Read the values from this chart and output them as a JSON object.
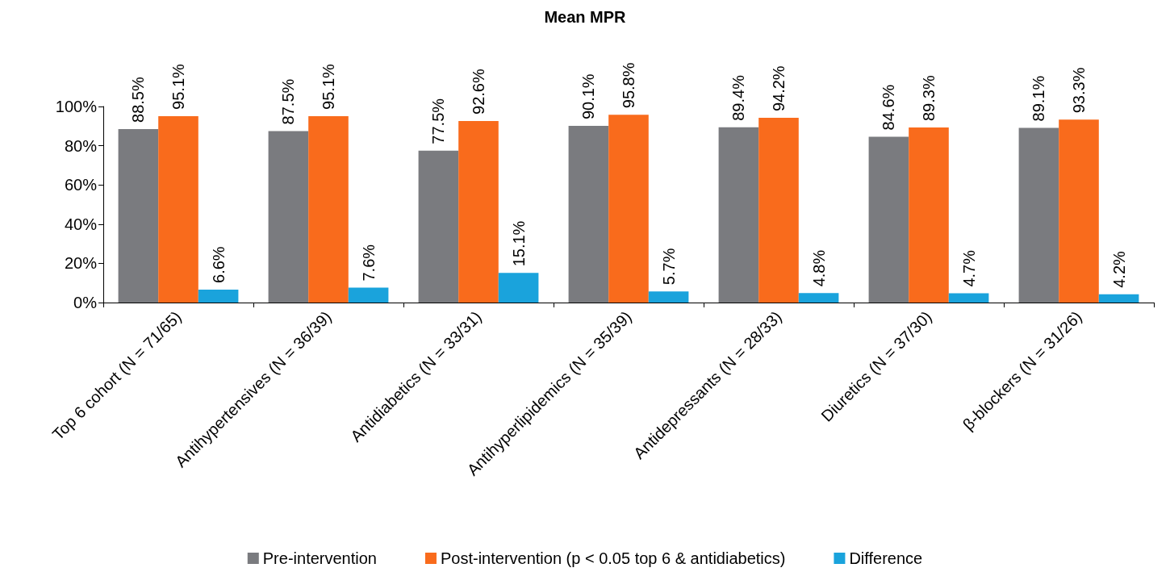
{
  "chart_data": {
    "type": "bar",
    "title": "Mean MPR",
    "categories": [
      "Top 6 cohort (N = 71/65)",
      "Antihypertensives (N = 36/39)",
      "Antidiabetics (N = 33/31)",
      "Antihyperlipidemics (N = 35/39)",
      "Antidepressants (N = 28/33)",
      "Diuretics (N = 37/30)",
      "β-blockers (N = 31/26)"
    ],
    "series": [
      {
        "name": "Pre-intervention",
        "color": "#7a7b7f",
        "values": [
          88.5,
          87.5,
          77.5,
          90.1,
          89.4,
          84.6,
          89.1
        ],
        "value_labels": [
          "88.5%",
          "87.5%",
          "77.5%",
          "90.1%",
          "89.4%",
          "84.6%",
          "89.1%"
        ]
      },
      {
        "name": "Post-intervention (p < 0.05 top 6 & antidiabetics)",
        "color": "#f96b1c",
        "values": [
          95.1,
          95.1,
          92.6,
          95.8,
          94.2,
          89.3,
          93.3
        ],
        "value_labels": [
          "95.1%",
          "95.1%",
          "92.6%",
          "95.8%",
          "94.2%",
          "89.3%",
          "93.3%"
        ]
      },
      {
        "name": "Difference",
        "color": "#1aa3dc",
        "values": [
          6.6,
          7.6,
          15.1,
          5.7,
          4.8,
          4.7,
          4.2
        ],
        "value_labels": [
          "6.6%",
          "7.6%",
          "15.1%",
          "5.7%",
          "4.8%",
          "4.7%",
          "4.2%"
        ]
      }
    ],
    "ylim": [
      0,
      100
    ],
    "yticks": [
      {
        "value": 0,
        "label": "0%"
      },
      {
        "value": 20,
        "label": "20%"
      },
      {
        "value": 40,
        "label": "40%"
      },
      {
        "value": 60,
        "label": "60%"
      },
      {
        "value": 80,
        "label": "80%"
      },
      {
        "value": 100,
        "label": "100%"
      }
    ],
    "grid": false,
    "legend": "bottom"
  }
}
